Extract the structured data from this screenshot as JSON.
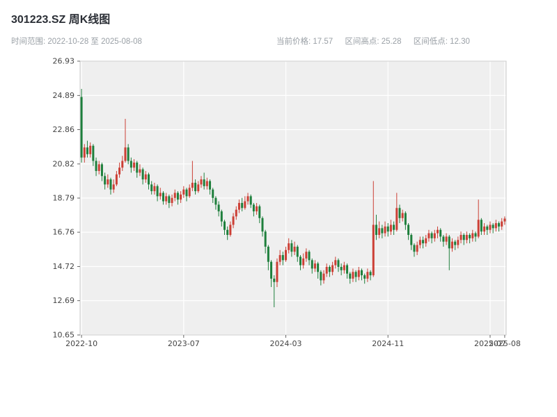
{
  "header": {
    "title": "301223.SZ 周K线图",
    "time_range_label": "时间范围: 2022-10-28 至 2025-08-08",
    "current_price_label": "当前价格: 17.57",
    "range_high_label": "区间高点: 25.28",
    "range_low_label": "区间低点: 12.30"
  },
  "chart_data": {
    "type": "candlestick",
    "title": "301223.SZ 周K线图",
    "interval": "weekly",
    "time_range": {
      "start": "2022-10-28",
      "end": "2025-08-08"
    },
    "current_price": 17.57,
    "period_high": 25.28,
    "period_low": 12.3,
    "ylim": [
      10.65,
      26.93
    ],
    "yticks": [
      26.93,
      24.89,
      22.86,
      20.82,
      18.79,
      16.76,
      14.72,
      12.69,
      10.65
    ],
    "xticks": [
      {
        "label": "2022-10",
        "index": 0
      },
      {
        "label": "2023-07",
        "index": 35
      },
      {
        "label": "2024-03",
        "index": 70
      },
      {
        "label": "2024-11",
        "index": 105
      },
      {
        "label": "2025-07",
        "index": 140
      },
      {
        "label": "2025-08",
        "index": 145
      }
    ],
    "grid": true,
    "colors": {
      "up": "#cc3f35",
      "down": "#1e7f3c",
      "plot_bg": "#efefef",
      "grid": "#ffffff",
      "border": "#cccccc",
      "axis_text": "#444444"
    },
    "candles": [
      [
        24.8,
        25.28,
        20.9,
        21.2
      ],
      [
        21.2,
        22.0,
        20.9,
        21.8
      ],
      [
        21.8,
        22.2,
        21.2,
        21.4
      ],
      [
        21.4,
        22.1,
        21.2,
        21.9
      ],
      [
        21.9,
        22.0,
        20.7,
        21.0
      ],
      [
        21.0,
        21.2,
        20.1,
        20.4
      ],
      [
        20.4,
        21.0,
        20.2,
        20.8
      ],
      [
        20.8,
        20.9,
        19.8,
        20.1
      ],
      [
        20.1,
        20.3,
        19.3,
        19.6
      ],
      [
        19.6,
        20.2,
        19.4,
        19.9
      ],
      [
        19.9,
        20.0,
        19.0,
        19.3
      ],
      [
        19.3,
        19.9,
        19.1,
        19.6
      ],
      [
        19.6,
        20.4,
        19.5,
        20.2
      ],
      [
        20.2,
        20.9,
        20.0,
        20.6
      ],
      [
        20.6,
        21.3,
        20.4,
        21.0
      ],
      [
        21.0,
        23.5,
        20.9,
        21.8
      ],
      [
        21.8,
        22.0,
        20.8,
        21.0
      ],
      [
        21.0,
        21.2,
        20.3,
        20.6
      ],
      [
        20.6,
        21.1,
        20.4,
        20.9
      ],
      [
        20.9,
        21.0,
        20.0,
        20.3
      ],
      [
        20.3,
        20.8,
        20.1,
        20.5
      ],
      [
        20.5,
        20.6,
        19.6,
        19.9
      ],
      [
        19.9,
        20.4,
        19.7,
        20.2
      ],
      [
        20.2,
        20.3,
        19.3,
        19.6
      ],
      [
        19.6,
        19.8,
        19.0,
        19.2
      ],
      [
        19.2,
        19.7,
        19.0,
        19.5
      ],
      [
        19.5,
        19.6,
        18.6,
        18.9
      ],
      [
        18.9,
        19.4,
        18.7,
        19.1
      ],
      [
        19.1,
        19.2,
        18.4,
        18.6
      ],
      [
        18.6,
        19.1,
        18.4,
        18.9
      ],
      [
        18.9,
        19.0,
        18.2,
        18.5
      ],
      [
        18.5,
        19.0,
        18.3,
        18.8
      ],
      [
        18.8,
        19.3,
        18.6,
        19.1
      ],
      [
        19.1,
        19.2,
        18.4,
        18.7
      ],
      [
        18.7,
        19.2,
        18.5,
        19.0
      ],
      [
        19.0,
        19.5,
        18.8,
        19.3
      ],
      [
        19.3,
        19.4,
        18.6,
        18.9
      ],
      [
        18.9,
        19.6,
        18.8,
        19.4
      ],
      [
        19.4,
        21.0,
        19.2,
        19.7
      ],
      [
        19.7,
        19.9,
        19.0,
        19.2
      ],
      [
        19.2,
        19.8,
        19.1,
        19.6
      ],
      [
        19.6,
        20.1,
        19.4,
        19.9
      ],
      [
        19.9,
        20.3,
        19.3,
        19.5
      ],
      [
        19.5,
        20.0,
        19.3,
        19.8
      ],
      [
        19.8,
        19.9,
        19.0,
        19.3
      ],
      [
        19.3,
        19.4,
        18.5,
        18.8
      ],
      [
        18.8,
        18.9,
        18.1,
        18.4
      ],
      [
        18.4,
        18.6,
        17.7,
        18.0
      ],
      [
        18.0,
        18.1,
        17.1,
        17.4
      ],
      [
        17.4,
        17.5,
        16.6,
        16.9
      ],
      [
        16.9,
        17.1,
        16.3,
        16.6
      ],
      [
        16.6,
        17.4,
        16.5,
        17.2
      ],
      [
        17.2,
        17.9,
        17.0,
        17.7
      ],
      [
        17.7,
        18.3,
        17.5,
        18.1
      ],
      [
        18.1,
        18.7,
        17.9,
        18.5
      ],
      [
        18.5,
        18.8,
        18.0,
        18.2
      ],
      [
        18.2,
        18.9,
        18.1,
        18.6
      ],
      [
        18.6,
        19.1,
        18.4,
        18.9
      ],
      [
        18.9,
        19.0,
        18.2,
        18.4
      ],
      [
        18.4,
        18.5,
        17.7,
        18.0
      ],
      [
        18.0,
        18.5,
        17.8,
        18.3
      ],
      [
        18.3,
        18.4,
        17.3,
        17.6
      ],
      [
        17.6,
        17.7,
        16.5,
        16.8
      ],
      [
        16.8,
        16.9,
        15.5,
        15.9
      ],
      [
        15.9,
        16.0,
        14.5,
        15.0
      ],
      [
        15.0,
        15.1,
        13.5,
        14.0
      ],
      [
        14.0,
        14.2,
        12.3,
        13.8
      ],
      [
        13.8,
        15.2,
        13.5,
        15.0
      ],
      [
        15.0,
        15.7,
        14.8,
        15.4
      ],
      [
        15.4,
        15.6,
        14.8,
        15.1
      ],
      [
        15.1,
        15.9,
        15.0,
        15.7
      ],
      [
        15.7,
        16.4,
        15.5,
        16.1
      ],
      [
        16.1,
        16.3,
        15.3,
        15.6
      ],
      [
        15.6,
        16.2,
        15.4,
        15.9
      ],
      [
        15.9,
        16.0,
        15.0,
        15.3
      ],
      [
        15.3,
        15.4,
        14.5,
        14.8
      ],
      [
        14.8,
        15.5,
        14.6,
        15.2
      ],
      [
        15.2,
        15.8,
        15.0,
        15.6
      ],
      [
        15.6,
        15.7,
        14.8,
        15.1
      ],
      [
        15.1,
        15.2,
        14.3,
        14.6
      ],
      [
        14.6,
        15.1,
        14.4,
        14.9
      ],
      [
        14.9,
        15.0,
        14.0,
        14.4
      ],
      [
        14.4,
        14.5,
        13.6,
        13.9
      ],
      [
        13.9,
        14.5,
        13.7,
        14.3
      ],
      [
        14.3,
        14.9,
        14.1,
        14.7
      ],
      [
        14.7,
        14.8,
        14.1,
        14.4
      ],
      [
        14.4,
        15.0,
        14.2,
        14.8
      ],
      [
        14.8,
        15.3,
        14.6,
        15.1
      ],
      [
        15.1,
        15.2,
        14.4,
        14.7
      ],
      [
        14.7,
        14.9,
        14.2,
        14.5
      ],
      [
        14.5,
        15.0,
        14.3,
        14.8
      ],
      [
        14.8,
        14.9,
        14.0,
        14.3
      ],
      [
        14.3,
        14.4,
        13.7,
        14.0
      ],
      [
        14.0,
        14.6,
        13.8,
        14.4
      ],
      [
        14.4,
        14.5,
        13.8,
        14.1
      ],
      [
        14.1,
        14.7,
        13.9,
        14.5
      ],
      [
        14.5,
        14.6,
        13.9,
        14.2
      ],
      [
        14.2,
        14.3,
        13.7,
        14.0
      ],
      [
        14.0,
        14.6,
        13.8,
        14.4
      ],
      [
        14.4,
        14.5,
        13.9,
        14.2
      ],
      [
        14.2,
        19.8,
        14.1,
        17.2
      ],
      [
        17.2,
        17.8,
        16.3,
        16.6
      ],
      [
        16.6,
        17.4,
        16.4,
        17.0
      ],
      [
        17.0,
        17.2,
        16.4,
        16.7
      ],
      [
        16.7,
        17.4,
        16.5,
        17.1
      ],
      [
        17.1,
        17.3,
        16.5,
        16.8
      ],
      [
        16.8,
        17.5,
        16.6,
        17.2
      ],
      [
        17.2,
        17.4,
        16.6,
        16.9
      ],
      [
        16.9,
        19.1,
        16.8,
        18.2
      ],
      [
        18.2,
        18.4,
        17.3,
        17.6
      ],
      [
        17.6,
        18.1,
        17.4,
        17.9
      ],
      [
        17.9,
        18.0,
        16.9,
        17.2
      ],
      [
        17.2,
        17.3,
        16.3,
        16.6
      ],
      [
        16.6,
        16.7,
        15.7,
        16.0
      ],
      [
        16.0,
        16.1,
        15.3,
        15.6
      ],
      [
        15.6,
        16.2,
        15.4,
        16.0
      ],
      [
        16.0,
        16.5,
        15.8,
        16.3
      ],
      [
        16.3,
        16.5,
        15.8,
        16.1
      ],
      [
        16.1,
        16.6,
        15.9,
        16.4
      ],
      [
        16.4,
        16.9,
        16.2,
        16.7
      ],
      [
        16.7,
        16.8,
        16.1,
        16.4
      ],
      [
        16.4,
        16.9,
        16.2,
        16.7
      ],
      [
        16.7,
        17.1,
        16.4,
        16.9
      ],
      [
        16.9,
        17.0,
        16.2,
        16.5
      ],
      [
        16.5,
        16.6,
        15.9,
        16.2
      ],
      [
        16.2,
        16.7,
        16.0,
        16.5
      ],
      [
        16.5,
        16.6,
        14.5,
        15.8
      ],
      [
        15.8,
        16.4,
        15.6,
        16.2
      ],
      [
        16.2,
        16.3,
        15.7,
        16.0
      ],
      [
        16.0,
        16.5,
        15.8,
        16.3
      ],
      [
        16.3,
        16.8,
        16.1,
        16.6
      ],
      [
        16.6,
        16.7,
        16.0,
        16.3
      ],
      [
        16.3,
        16.8,
        16.1,
        16.6
      ],
      [
        16.6,
        16.7,
        16.1,
        16.4
      ],
      [
        16.4,
        16.9,
        16.2,
        16.7
      ],
      [
        16.7,
        16.8,
        16.2,
        16.5
      ],
      [
        16.5,
        18.7,
        16.4,
        17.5
      ],
      [
        17.5,
        17.6,
        16.6,
        16.8
      ],
      [
        16.8,
        17.3,
        16.6,
        17.1
      ],
      [
        17.1,
        17.2,
        16.6,
        16.9
      ],
      [
        16.9,
        17.4,
        16.7,
        17.2
      ],
      [
        17.2,
        17.3,
        16.7,
        17.0
      ],
      [
        17.0,
        17.5,
        16.8,
        17.3
      ],
      [
        17.3,
        17.4,
        16.8,
        17.1
      ],
      [
        17.1,
        17.6,
        16.9,
        17.4
      ],
      [
        17.4,
        17.7,
        17.2,
        17.57
      ]
    ]
  }
}
